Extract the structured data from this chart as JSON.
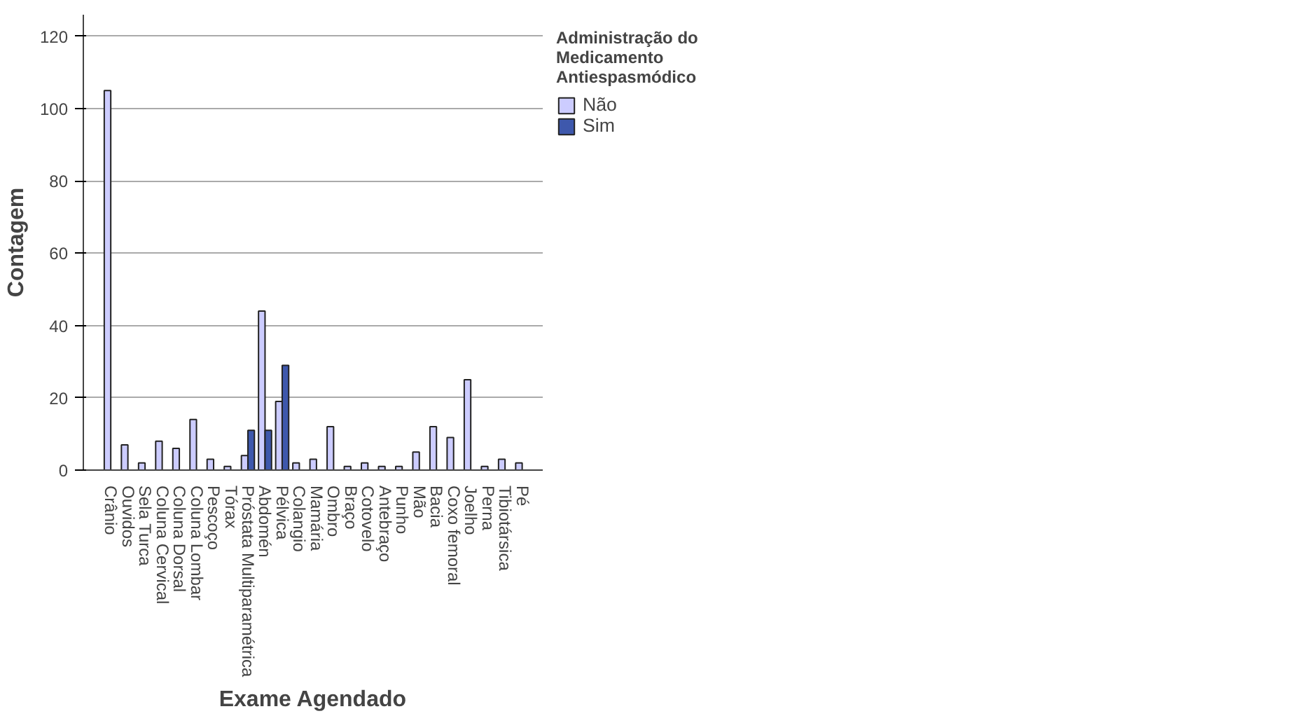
{
  "chart_data": {
    "type": "bar",
    "xlabel": "Exame Agendado",
    "ylabel": "Contagem",
    "legend_title": "Administração do Medicamento Antiespasmódico",
    "categories": [
      "Crânio",
      "Ouvidos",
      "Sela Turca",
      "Coluna Cervical",
      "Coluna Dorsal",
      "Coluna Lombar",
      "Pescoço",
      "Tórax",
      "Próstata Multiparamétrica",
      "Abdomén",
      "Pélvica",
      "Colangio",
      "Mamária",
      "Ombro",
      "Braço",
      "Cotovelo",
      "Antebraço",
      "Punho",
      "Mão",
      "Bacia",
      "Coxo femoral",
      "Joelho",
      "Perna",
      "Tibiotársica",
      "Pé"
    ],
    "series": [
      {
        "name": "Não",
        "color": "#ccccff",
        "values": [
          105,
          7,
          2,
          8,
          6,
          14,
          3,
          1,
          4,
          44,
          19,
          2,
          3,
          12,
          1,
          2,
          1,
          1,
          5,
          12,
          9,
          25,
          1,
          3,
          2
        ]
      },
      {
        "name": "Sim",
        "color": "#3e58ac",
        "values": [
          null,
          null,
          null,
          null,
          null,
          null,
          null,
          null,
          11,
          11,
          29,
          null,
          null,
          null,
          null,
          null,
          null,
          null,
          null,
          null,
          null,
          null,
          null,
          null,
          null
        ]
      }
    ],
    "ylim": [
      0,
      126
    ],
    "yticks": [
      0,
      20,
      40,
      60,
      80,
      100,
      120
    ],
    "grid": "y",
    "legend": "top right"
  }
}
